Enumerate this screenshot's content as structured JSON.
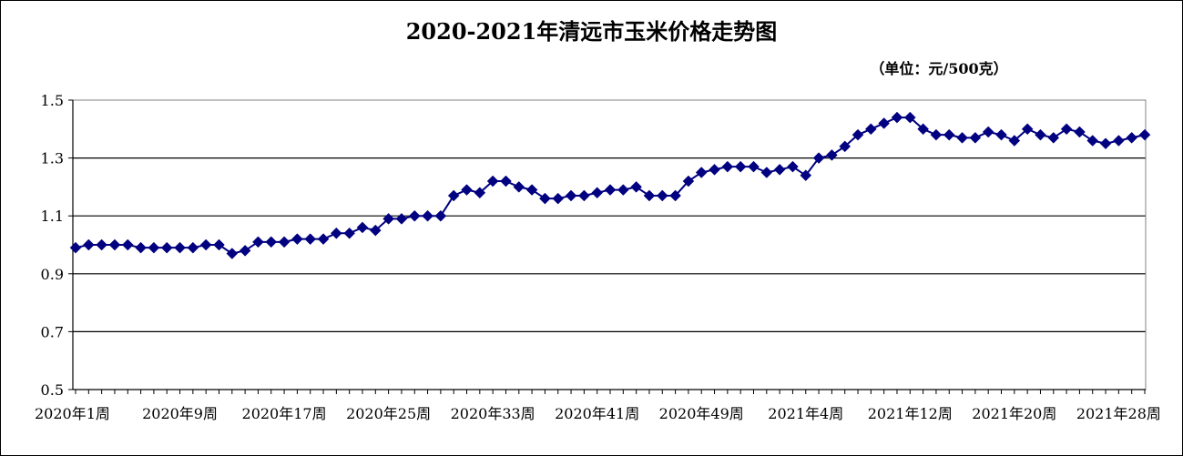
{
  "chart_data": {
    "type": "line",
    "title": "2020-2021年清远市玉米价格走势图",
    "unit_label": "（单位：元/500克）",
    "xlabel": "",
    "ylabel": "",
    "ylim": [
      0.5,
      1.5
    ],
    "y_ticks": [
      "1.5",
      "1.3",
      "1.1",
      "0.9",
      "0.7",
      "0.5"
    ],
    "y_tick_values": [
      1.5,
      1.3,
      1.1,
      0.9,
      0.7,
      0.5
    ],
    "x_tick_labels": [
      {
        "index": 0,
        "label": "2020年1周"
      },
      {
        "index": 8,
        "label": "2020年9周"
      },
      {
        "index": 16,
        "label": "2020年17周"
      },
      {
        "index": 24,
        "label": "2020年25周"
      },
      {
        "index": 32,
        "label": "2020年33周"
      },
      {
        "index": 40,
        "label": "2020年41周"
      },
      {
        "index": 48,
        "label": "2020年49周"
      },
      {
        "index": 56,
        "label": "2021年4周"
      },
      {
        "index": 64,
        "label": "2021年12周"
      },
      {
        "index": 72,
        "label": "2021年20周"
      },
      {
        "index": 80,
        "label": "2021年28周"
      }
    ],
    "grid": "horizontal",
    "legend": "none",
    "colors": {
      "series": "#000080",
      "grid": "#000000"
    },
    "series": [
      {
        "values": [
          0.99,
          1.0,
          1.0,
          1.0,
          1.0,
          0.99,
          0.99,
          0.99,
          0.99,
          0.99,
          1.0,
          1.0,
          0.97,
          0.98,
          1.01,
          1.01,
          1.01,
          1.02,
          1.02,
          1.02,
          1.04,
          1.04,
          1.06,
          1.05,
          1.09,
          1.09,
          1.1,
          1.1,
          1.1,
          1.17,
          1.19,
          1.18,
          1.22,
          1.22,
          1.2,
          1.19,
          1.16,
          1.16,
          1.17,
          1.17,
          1.18,
          1.19,
          1.19,
          1.2,
          1.17,
          1.17,
          1.17,
          1.22,
          1.25,
          1.26,
          1.27,
          1.27,
          1.27,
          1.25,
          1.26,
          1.27,
          1.24,
          1.3,
          1.31,
          1.34,
          1.38,
          1.4,
          1.42,
          1.44,
          1.44,
          1.4,
          1.38,
          1.38,
          1.37,
          1.37,
          1.39,
          1.38,
          1.36,
          1.4,
          1.38,
          1.37,
          1.4,
          1.39,
          1.36,
          1.35,
          1.36,
          1.37,
          1.38
        ]
      }
    ]
  }
}
